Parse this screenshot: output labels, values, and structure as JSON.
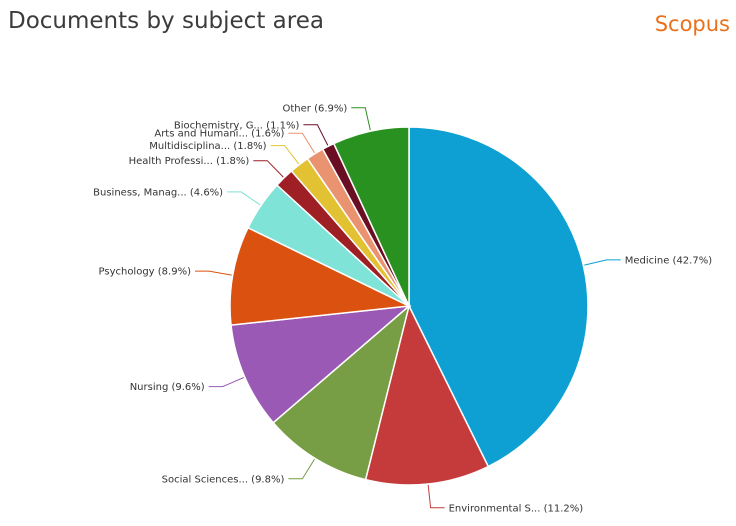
{
  "header": {
    "title": "Documents by subject area",
    "brand": "Scopus"
  },
  "colors": {
    "brand": "#e9711c"
  },
  "chart_data": {
    "type": "pie",
    "title": "Documents by subject area",
    "slices": [
      {
        "name": "Medicine",
        "value": 42.7,
        "label": "Medicine (42.7%)",
        "color": "#0ea0d2"
      },
      {
        "name": "Environmental S...",
        "value": 11.2,
        "label": "Environmental S... (11.2%)",
        "color": "#c53a3a"
      },
      {
        "name": "Social Sciences...",
        "value": 9.8,
        "label": "Social Sciences... (9.8%)",
        "color": "#779e44"
      },
      {
        "name": "Nursing",
        "value": 9.6,
        "label": "Nursing (9.6%)",
        "color": "#9a59b5"
      },
      {
        "name": "Psychology",
        "value": 8.9,
        "label": "Psychology (8.9%)",
        "color": "#da5110"
      },
      {
        "name": "Business, Manag...",
        "value": 4.6,
        "label": "Business, Manag... (4.6%)",
        "color": "#80e3d8"
      },
      {
        "name": "Health Professi...",
        "value": 1.8,
        "label": "Health Professi... (1.8%)",
        "color": "#9e1f24"
      },
      {
        "name": "Multidisciplina...",
        "value": 1.8,
        "label": "Multidisciplina... (1.8%)",
        "color": "#e2c233"
      },
      {
        "name": "Arts and Humani...",
        "value": 1.6,
        "label": "Arts and Humani... (1.6%)",
        "color": "#e99370"
      },
      {
        "name": "Biochemistry, G...",
        "value": 1.1,
        "label": "Biochemistry, G... (1.1%)",
        "color": "#6a0f23"
      },
      {
        "name": "Other",
        "value": 6.9,
        "label": "Other (6.9%)",
        "color": "#29911f"
      }
    ]
  }
}
